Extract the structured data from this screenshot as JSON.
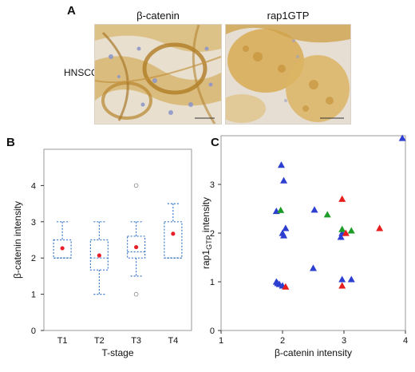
{
  "panel_a": {
    "label": "A",
    "row_label": "HNSCC",
    "image_titles": [
      "β-catenin",
      "rap1GTP"
    ],
    "colors": {
      "stain": "#c89a3a",
      "background": "#e9e3dc",
      "nuclei": "#8b96c8"
    }
  },
  "chart_data": [
    {
      "panel": "B",
      "type": "box",
      "title": "",
      "xlabel": "T-stage",
      "ylabel": "β-catenin intensity",
      "ylim": [
        0,
        5
      ],
      "yticks": [
        "0",
        "1",
        "2",
        "3",
        "4"
      ],
      "categories": [
        "T1",
        "T2",
        "T3",
        "T4"
      ],
      "boxes": [
        {
          "min": 2.0,
          "q1": 2.0,
          "median": 2.0,
          "q3": 2.5,
          "max": 3.0,
          "mean": 2.27,
          "outliers": []
        },
        {
          "min": 1.0,
          "q1": 1.67,
          "median": 2.0,
          "q3": 2.5,
          "max": 3.0,
          "mean": 2.07,
          "outliers": []
        },
        {
          "min": 1.5,
          "q1": 2.0,
          "median": 2.17,
          "q3": 2.6,
          "max": 3.0,
          "mean": 2.3,
          "outliers": [
            4.0,
            1.0
          ]
        },
        {
          "min": 2.0,
          "q1": 2.0,
          "median": 2.0,
          "q3": 3.0,
          "max": 3.5,
          "mean": 2.67,
          "outliers": []
        }
      ],
      "colors": {
        "box": "#3a78c8",
        "mean": "#e8202a",
        "frame": "#999999"
      }
    },
    {
      "panel": "C",
      "type": "scatter",
      "title": "",
      "xlabel": "β-catenin intensity",
      "ylabel_main": "rap1",
      "ylabel_sub": "GTP",
      "ylabel_tail": " intensity",
      "xlim": [
        1,
        4
      ],
      "ylim": [
        0,
        4
      ],
      "xticks": [
        "1",
        "2",
        "3",
        "4"
      ],
      "yticks": [
        "0",
        "1",
        "2",
        "3"
      ],
      "series": [
        {
          "color": "#2c3fd1",
          "points": [
            [
              1.9,
              2.45
            ],
            [
              1.98,
              3.4
            ],
            [
              2.02,
              3.08
            ],
            [
              2.05,
              2.1
            ],
            [
              2.0,
              2.0
            ],
            [
              2.02,
              1.95
            ],
            [
              1.9,
              1.0
            ],
            [
              1.95,
              0.95
            ],
            [
              1.92,
              0.97
            ],
            [
              2.0,
              0.92
            ],
            [
              2.52,
              2.48
            ],
            [
              2.5,
              1.28
            ],
            [
              2.95,
              1.92
            ],
            [
              2.97,
              2.0
            ],
            [
              2.97,
              1.05
            ],
            [
              3.12,
              1.05
            ],
            [
              3.95,
              3.95
            ]
          ]
        },
        {
          "color": "#1e9c2a",
          "points": [
            [
              1.97,
              2.47
            ],
            [
              2.73,
              2.38
            ],
            [
              2.97,
              2.08
            ],
            [
              3.12,
              2.05
            ]
          ]
        },
        {
          "color": "#e81e1e",
          "points": [
            [
              2.05,
              0.9
            ],
            [
              2.97,
              2.7
            ],
            [
              3.03,
              2.0
            ],
            [
              2.97,
              0.92
            ],
            [
              3.58,
              2.1
            ]
          ]
        }
      ]
    }
  ]
}
